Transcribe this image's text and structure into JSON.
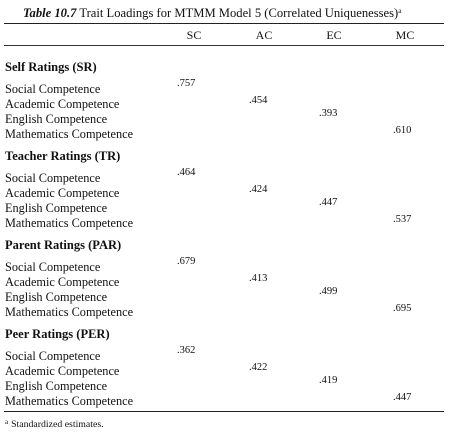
{
  "caption": {
    "label": "Table 10.7",
    "text": "Trait Loadings for MTMM Model 5 (Correlated Uniquenesses)",
    "marker": "a"
  },
  "columns": [
    "SC",
    "AC",
    "EC",
    "MC"
  ],
  "groups": [
    {
      "title": "Self Ratings (SR)",
      "rows": [
        {
          "label": "Social Competence",
          "col": 0,
          "value": ".757"
        },
        {
          "label": "Academic Competence",
          "col": 1,
          "value": ".454"
        },
        {
          "label": "English Competence",
          "col": 2,
          "value": ".393"
        },
        {
          "label": "Mathematics Competence",
          "col": 3,
          "value": ".610"
        }
      ]
    },
    {
      "title": "Teacher Ratings (TR)",
      "rows": [
        {
          "label": "Social Competence",
          "col": 0,
          "value": ".464"
        },
        {
          "label": "Academic Competence",
          "col": 1,
          "value": ".424"
        },
        {
          "label": "English Competence",
          "col": 2,
          "value": ".447"
        },
        {
          "label": "Mathematics Competence",
          "col": 3,
          "value": ".537"
        }
      ]
    },
    {
      "title": "Parent Ratings (PAR)",
      "rows": [
        {
          "label": "Social Competence",
          "col": 0,
          "value": ".679"
        },
        {
          "label": "Academic Competence",
          "col": 1,
          "value": ".413"
        },
        {
          "label": "English Competence",
          "col": 2,
          "value": ".499"
        },
        {
          "label": "Mathematics Competence",
          "col": 3,
          "value": ".695"
        }
      ]
    },
    {
      "title": "Peer Ratings (PER)",
      "rows": [
        {
          "label": "Social Competence",
          "col": 0,
          "value": ".362"
        },
        {
          "label": "Academic Competence",
          "col": 1,
          "value": ".422"
        },
        {
          "label": "English Competence",
          "col": 2,
          "value": ".419"
        },
        {
          "label": "Mathematics Competence",
          "col": 3,
          "value": ".447"
        }
      ]
    }
  ],
  "footnote": {
    "marker": "a",
    "text": "Standardized estimates."
  }
}
